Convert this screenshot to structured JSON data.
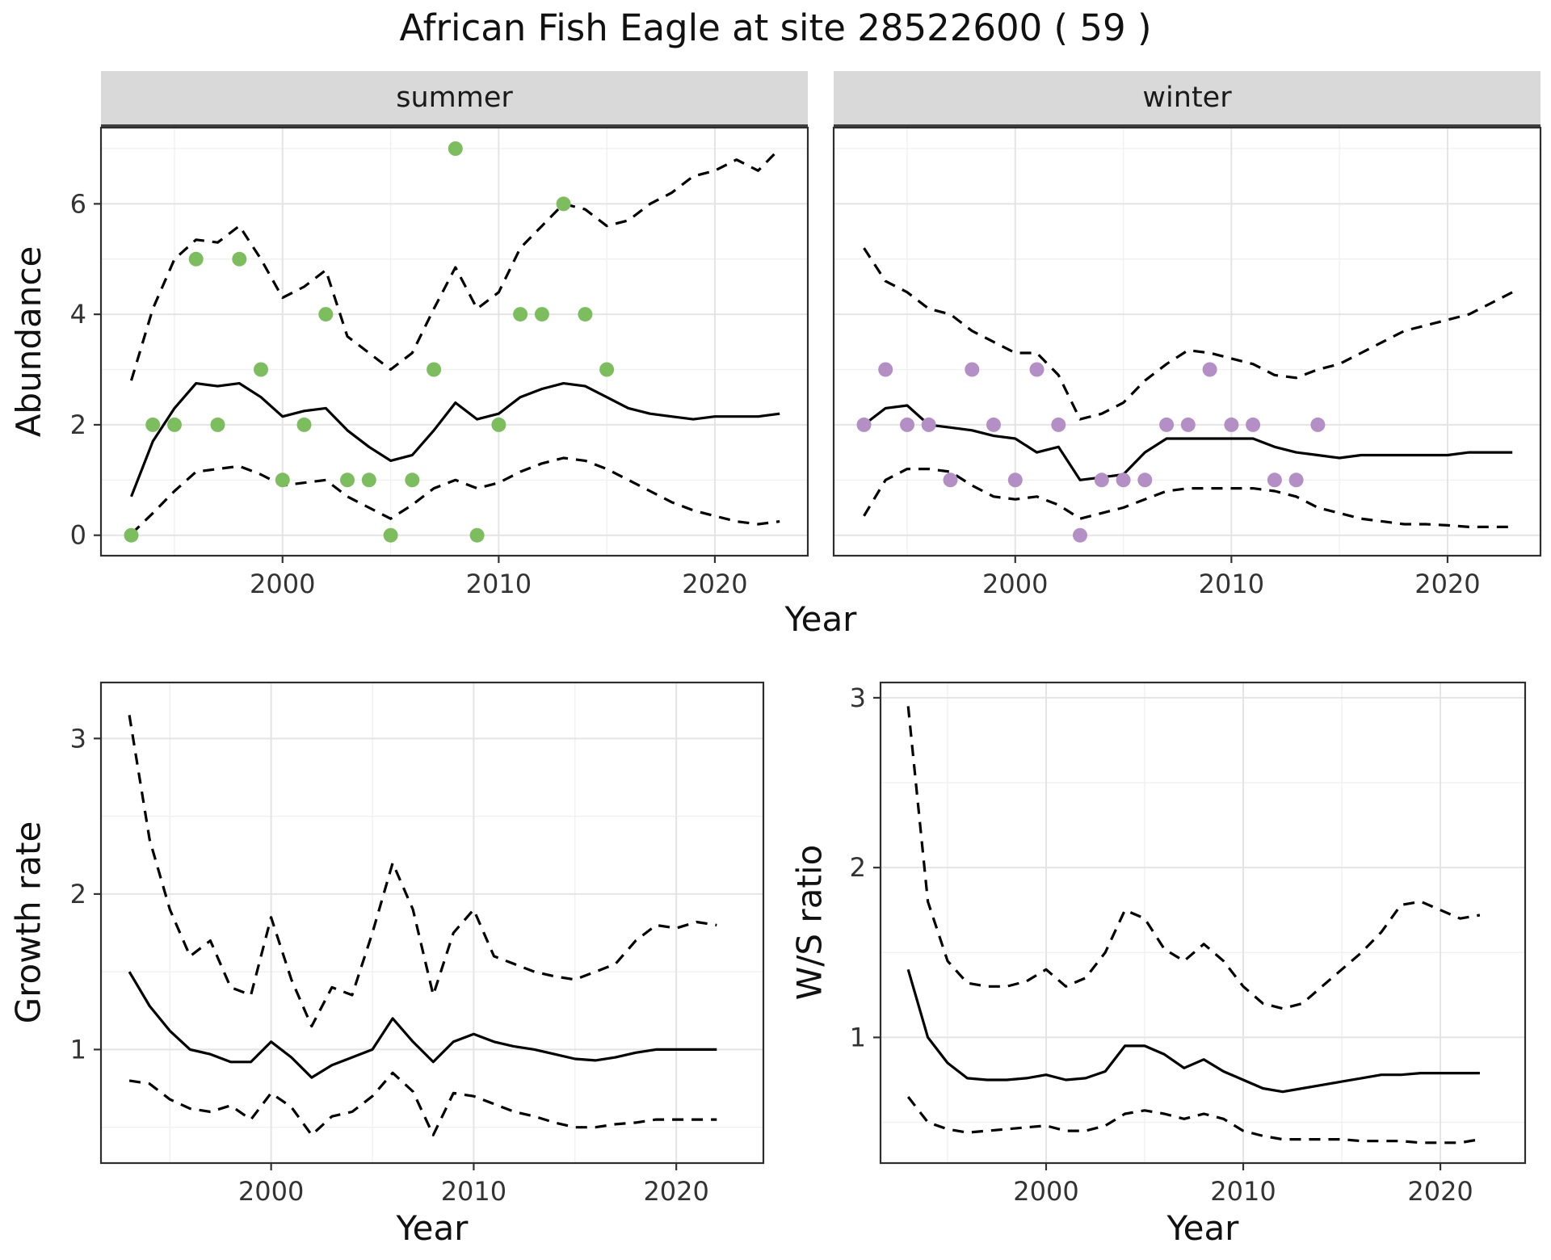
{
  "title": "African Fish Eagle at site 28522600 ( 59 )",
  "labels": {
    "year_axis": "Year",
    "abundance_axis": "Abundance"
  },
  "colors": {
    "summer_point": "#7cbe5e",
    "winter_point": "#b48fc6",
    "line": "#000000",
    "strip_bg": "#d9d9d9",
    "strip_border": "#3f3f3f",
    "grid_major": "#e4e4e4",
    "grid_minor": "#f0f0f0",
    "panel_border": "#2e2e2e",
    "tick_text": "#333333"
  },
  "chart_data": [
    {
      "type": "line",
      "facet_label": "summer",
      "xlabel": "Year",
      "ylabel": "Abundance",
      "xlim": [
        1991.6,
        2024.3
      ],
      "ylim": [
        -0.37,
        7.38
      ],
      "xticks": [
        2000,
        2010,
        2020
      ],
      "yticks": [
        0,
        2,
        4,
        6
      ],
      "x_minor": [
        1995,
        2005,
        2015
      ],
      "y_minor": [
        1,
        3,
        5,
        7
      ],
      "grid": true,
      "legend_position": "none",
      "years": [
        1993,
        1994,
        1995,
        1996,
        1997,
        1998,
        1999,
        2000,
        2001,
        2002,
        2003,
        2004,
        2005,
        2006,
        2007,
        2008,
        2009,
        2010,
        2011,
        2012,
        2013,
        2014,
        2015,
        2016,
        2017,
        2018,
        2019,
        2020,
        2021,
        2022,
        2023
      ],
      "series": [
        {
          "name": "mean",
          "style": "solid",
          "values": [
            0.7,
            1.7,
            2.3,
            2.75,
            2.7,
            2.75,
            2.5,
            2.15,
            2.25,
            2.3,
            1.9,
            1.6,
            1.35,
            1.45,
            1.9,
            2.4,
            2.1,
            2.2,
            2.5,
            2.65,
            2.75,
            2.7,
            2.5,
            2.3,
            2.2,
            2.15,
            2.1,
            2.15,
            2.15,
            2.15,
            2.2
          ]
        },
        {
          "name": "upper-ci",
          "style": "dashed",
          "values": [
            2.8,
            4.1,
            5.0,
            5.35,
            5.3,
            5.6,
            5.0,
            4.3,
            4.5,
            4.8,
            3.6,
            3.3,
            3.0,
            3.3,
            4.1,
            4.85,
            4.1,
            4.4,
            5.2,
            5.6,
            6.0,
            5.9,
            5.6,
            5.7,
            6.0,
            6.2,
            6.5,
            6.6,
            6.8,
            6.6,
            7.0
          ]
        },
        {
          "name": "lower-ci",
          "style": "dashed",
          "values": [
            0.02,
            0.4,
            0.8,
            1.15,
            1.2,
            1.25,
            1.1,
            0.9,
            0.95,
            1.0,
            0.7,
            0.5,
            0.3,
            0.55,
            0.85,
            1.0,
            0.85,
            0.95,
            1.15,
            1.3,
            1.4,
            1.35,
            1.2,
            1.0,
            0.8,
            0.6,
            0.45,
            0.35,
            0.25,
            0.2,
            0.25
          ]
        }
      ],
      "points": {
        "label": "observed summer counts",
        "color": "#7cbe5e",
        "data": [
          [
            1993,
            0
          ],
          [
            1994,
            2
          ],
          [
            1995,
            2
          ],
          [
            1996,
            5
          ],
          [
            1997,
            2
          ],
          [
            1998,
            5
          ],
          [
            1999,
            3
          ],
          [
            2000,
            1
          ],
          [
            2001,
            2
          ],
          [
            2002,
            4
          ],
          [
            2003,
            1
          ],
          [
            2004,
            1
          ],
          [
            2005,
            0
          ],
          [
            2006,
            1
          ],
          [
            2007,
            3
          ],
          [
            2008,
            7
          ],
          [
            2009,
            0
          ],
          [
            2010,
            2
          ],
          [
            2011,
            4
          ],
          [
            2012,
            4
          ],
          [
            2013,
            6
          ],
          [
            2014,
            4
          ],
          [
            2015,
            3
          ]
        ]
      }
    },
    {
      "type": "line",
      "facet_label": "winter",
      "xlabel": "Year",
      "ylabel": "Abundance",
      "xlim": [
        1991.6,
        2024.3
      ],
      "ylim": [
        -0.37,
        7.38
      ],
      "xticks": [
        2000,
        2010,
        2020
      ],
      "yticks": [
        0,
        2,
        4,
        6
      ],
      "x_minor": [
        1995,
        2005,
        2015
      ],
      "y_minor": [
        1,
        3,
        5,
        7
      ],
      "grid": true,
      "legend_position": "none",
      "years": [
        1993,
        1994,
        1995,
        1996,
        1997,
        1998,
        1999,
        2000,
        2001,
        2002,
        2003,
        2004,
        2005,
        2006,
        2007,
        2008,
        2009,
        2010,
        2011,
        2012,
        2013,
        2014,
        2015,
        2016,
        2017,
        2018,
        2019,
        2020,
        2021,
        2022,
        2023
      ],
      "series": [
        {
          "name": "mean",
          "style": "solid",
          "values": [
            2.0,
            2.3,
            2.35,
            2.0,
            1.95,
            1.9,
            1.8,
            1.75,
            1.5,
            1.6,
            1.0,
            1.05,
            1.1,
            1.5,
            1.75,
            1.75,
            1.75,
            1.75,
            1.75,
            1.6,
            1.5,
            1.45,
            1.4,
            1.45,
            1.45,
            1.45,
            1.45,
            1.45,
            1.5,
            1.5,
            1.5
          ]
        },
        {
          "name": "upper-ci",
          "style": "dashed",
          "values": [
            5.2,
            4.6,
            4.4,
            4.1,
            4.0,
            3.7,
            3.5,
            3.3,
            3.3,
            2.9,
            2.1,
            2.2,
            2.4,
            2.8,
            3.1,
            3.35,
            3.3,
            3.2,
            3.1,
            2.9,
            2.85,
            3.0,
            3.1,
            3.3,
            3.5,
            3.7,
            3.8,
            3.9,
            4.0,
            4.2,
            4.4
          ]
        },
        {
          "name": "lower-ci",
          "style": "dashed",
          "values": [
            0.35,
            1.0,
            1.2,
            1.2,
            1.15,
            0.9,
            0.7,
            0.65,
            0.7,
            0.55,
            0.3,
            0.4,
            0.5,
            0.65,
            0.8,
            0.85,
            0.85,
            0.85,
            0.85,
            0.8,
            0.7,
            0.5,
            0.4,
            0.3,
            0.25,
            0.2,
            0.2,
            0.18,
            0.15,
            0.15,
            0.15
          ]
        }
      ],
      "points": {
        "label": "observed winter counts",
        "color": "#b48fc6",
        "data": [
          [
            1993,
            2
          ],
          [
            1994,
            3
          ],
          [
            1995,
            2
          ],
          [
            1996,
            2
          ],
          [
            1997,
            1
          ],
          [
            1998,
            3
          ],
          [
            1999,
            2
          ],
          [
            2000,
            1
          ],
          [
            2001,
            3
          ],
          [
            2002,
            2
          ],
          [
            2003,
            0
          ],
          [
            2004,
            1
          ],
          [
            2005,
            1
          ],
          [
            2006,
            1
          ],
          [
            2007,
            2
          ],
          [
            2008,
            2
          ],
          [
            2009,
            3
          ],
          [
            2010,
            2
          ],
          [
            2011,
            2
          ],
          [
            2012,
            1
          ],
          [
            2013,
            1
          ],
          [
            2014,
            2
          ]
        ]
      }
    },
    {
      "type": "line",
      "xlabel": "Year",
      "ylabel": "Growth rate",
      "xlim": [
        1991.6,
        2024.3
      ],
      "ylim": [
        0.27,
        3.36
      ],
      "xticks": [
        2000,
        2010,
        2020
      ],
      "yticks": [
        1,
        2,
        3
      ],
      "x_minor": [
        1995,
        2005,
        2015
      ],
      "y_minor": [
        0.5,
        1.5,
        2.5
      ],
      "grid": true,
      "legend_position": "none",
      "years": [
        1993,
        1994,
        1995,
        1996,
        1997,
        1998,
        1999,
        2000,
        2001,
        2002,
        2003,
        2004,
        2005,
        2006,
        2007,
        2008,
        2009,
        2010,
        2011,
        2012,
        2013,
        2014,
        2015,
        2016,
        2017,
        2018,
        2019,
        2020,
        2021,
        2022
      ],
      "series": [
        {
          "name": "mean",
          "style": "solid",
          "values": [
            1.5,
            1.28,
            1.12,
            1.0,
            0.97,
            0.92,
            0.92,
            1.05,
            0.95,
            0.82,
            0.9,
            0.95,
            1.0,
            1.2,
            1.05,
            0.92,
            1.05,
            1.1,
            1.05,
            1.02,
            1.0,
            0.97,
            0.94,
            0.93,
            0.95,
            0.98,
            1.0,
            1.0,
            1.0,
            1.0
          ]
        },
        {
          "name": "upper-ci",
          "style": "dashed",
          "values": [
            3.15,
            2.35,
            1.9,
            1.6,
            1.7,
            1.4,
            1.35,
            1.85,
            1.45,
            1.15,
            1.4,
            1.35,
            1.75,
            2.2,
            1.9,
            1.35,
            1.75,
            1.9,
            1.6,
            1.55,
            1.5,
            1.47,
            1.45,
            1.5,
            1.55,
            1.7,
            1.8,
            1.78,
            1.82,
            1.8
          ]
        },
        {
          "name": "lower-ci",
          "style": "dashed",
          "values": [
            0.8,
            0.78,
            0.68,
            0.62,
            0.6,
            0.64,
            0.55,
            0.72,
            0.63,
            0.45,
            0.57,
            0.6,
            0.7,
            0.85,
            0.73,
            0.45,
            0.72,
            0.7,
            0.65,
            0.6,
            0.57,
            0.53,
            0.5,
            0.5,
            0.52,
            0.53,
            0.55,
            0.55,
            0.55,
            0.55
          ]
        }
      ]
    },
    {
      "type": "line",
      "xlabel": "Year",
      "ylabel": "W/S ratio",
      "xlim": [
        1991.6,
        2024.3
      ],
      "ylim": [
        0.26,
        3.09
      ],
      "xticks": [
        2000,
        2010,
        2020
      ],
      "yticks": [
        1,
        2,
        3
      ],
      "x_minor": [
        1995,
        2005,
        2015
      ],
      "y_minor": [
        0.5,
        1.5,
        2.5
      ],
      "grid": true,
      "legend_position": "none",
      "years": [
        1993,
        1994,
        1995,
        1996,
        1997,
        1998,
        1999,
        2000,
        2001,
        2002,
        2003,
        2004,
        2005,
        2006,
        2007,
        2008,
        2009,
        2010,
        2011,
        2012,
        2013,
        2014,
        2015,
        2016,
        2017,
        2018,
        2019,
        2020,
        2021,
        2022
      ],
      "series": [
        {
          "name": "mean",
          "style": "solid",
          "values": [
            1.4,
            1.0,
            0.85,
            0.76,
            0.75,
            0.75,
            0.76,
            0.78,
            0.75,
            0.76,
            0.8,
            0.95,
            0.95,
            0.9,
            0.82,
            0.87,
            0.8,
            0.75,
            0.7,
            0.68,
            0.7,
            0.72,
            0.74,
            0.76,
            0.78,
            0.78,
            0.79,
            0.79,
            0.79,
            0.79
          ]
        },
        {
          "name": "upper-ci",
          "style": "dashed",
          "values": [
            2.95,
            1.8,
            1.45,
            1.32,
            1.3,
            1.3,
            1.33,
            1.4,
            1.3,
            1.35,
            1.5,
            1.75,
            1.7,
            1.52,
            1.45,
            1.55,
            1.45,
            1.3,
            1.2,
            1.17,
            1.2,
            1.3,
            1.4,
            1.5,
            1.62,
            1.78,
            1.8,
            1.75,
            1.7,
            1.72
          ]
        },
        {
          "name": "lower-ci",
          "style": "dashed",
          "values": [
            0.65,
            0.5,
            0.46,
            0.44,
            0.45,
            0.46,
            0.47,
            0.48,
            0.45,
            0.45,
            0.48,
            0.55,
            0.57,
            0.55,
            0.52,
            0.55,
            0.52,
            0.45,
            0.42,
            0.4,
            0.4,
            0.4,
            0.4,
            0.39,
            0.39,
            0.39,
            0.38,
            0.38,
            0.38,
            0.4
          ]
        }
      ]
    }
  ]
}
